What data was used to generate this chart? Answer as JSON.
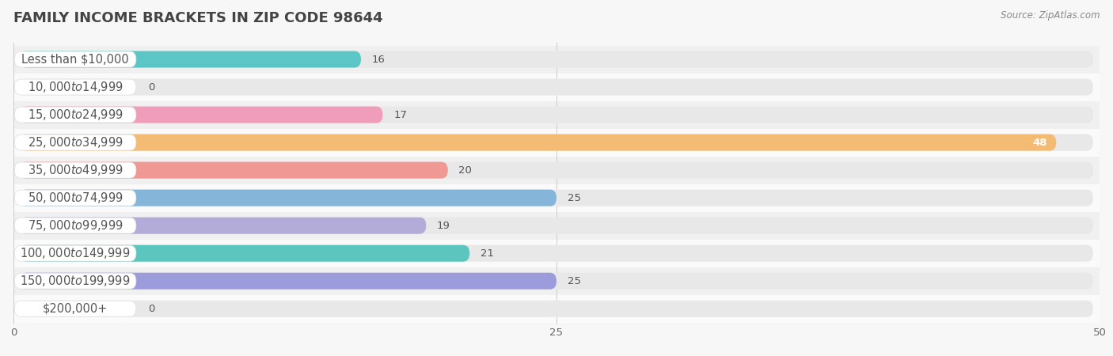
{
  "title": "Family Income Brackets in Zip Code 98644",
  "source": "Source: ZipAtlas.com",
  "categories": [
    "Less than $10,000",
    "$10,000 to $14,999",
    "$15,000 to $24,999",
    "$25,000 to $34,999",
    "$35,000 to $49,999",
    "$50,000 to $74,999",
    "$75,000 to $99,999",
    "$100,000 to $149,999",
    "$150,000 to $199,999",
    "$200,000+"
  ],
  "values": [
    16,
    0,
    17,
    48,
    20,
    25,
    19,
    21,
    25,
    0
  ],
  "bar_colors": [
    "#54c4c4",
    "#9b93d4",
    "#f099b8",
    "#f5b96e",
    "#f09490",
    "#80b4da",
    "#b0a8d8",
    "#54c4bc",
    "#9898dc",
    "#f4a0c4"
  ],
  "xlim_data": 50,
  "xticks": [
    0,
    25,
    50
  ],
  "bg_color": "#f7f7f7",
  "row_bg_even": "#f0f0f0",
  "row_bg_odd": "#fafafa",
  "bar_track_color": "#e8e8e8",
  "label_bg_color": "#ffffff",
  "title_fontsize": 13,
  "label_fontsize": 10.5,
  "value_fontsize": 9.5,
  "tick_fontsize": 9.5
}
